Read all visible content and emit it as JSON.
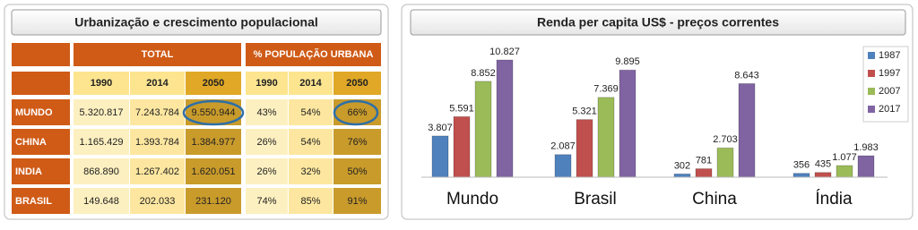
{
  "table": {
    "title": "Urbanização e crescimento populacional",
    "group_headers": [
      "TOTAL",
      "% POPULAÇÃO URBANA"
    ],
    "years": [
      "1990",
      "2014",
      "2050",
      "1990",
      "2014",
      "2050"
    ],
    "rows": [
      [
        "MUNDO",
        "5.320.817",
        "7.243.784",
        "9.550.944",
        "43%",
        "54%",
        "66%"
      ],
      [
        "CHINA",
        "1.165.429",
        "1.393.784",
        "1.384.977",
        "26%",
        "54%",
        "76%"
      ],
      [
        "INDIA",
        "868.890",
        "1.267.402",
        "1.620.051",
        "26%",
        "32%",
        "50%"
      ],
      [
        "BRASIL",
        "149.648",
        "202.033",
        "231.120",
        "74%",
        "85%",
        "91%"
      ]
    ]
  },
  "chart_data": {
    "type": "bar",
    "title": "Renda per capita US$ - preços correntes",
    "categories": [
      "Mundo",
      "Brasil",
      "China",
      "Índia"
    ],
    "series": [
      {
        "name": "1987",
        "color": "#4f81bd",
        "values": [
          3807,
          2087,
          302,
          356
        ],
        "value_labels": [
          "3.807",
          "2.087",
          "302",
          "356"
        ]
      },
      {
        "name": "1997",
        "color": "#c0504d",
        "values": [
          5591,
          5321,
          781,
          435
        ],
        "value_labels": [
          "5.591",
          "5.321",
          "781",
          "435"
        ]
      },
      {
        "name": "2007",
        "color": "#9bbb59",
        "values": [
          8852,
          7369,
          2703,
          1077
        ],
        "value_labels": [
          "8.852",
          "7.369",
          "2.703",
          "1.077"
        ]
      },
      {
        "name": "2017",
        "color": "#8064a2",
        "values": [
          10827,
          9895,
          8643,
          1983
        ],
        "value_labels": [
          "10.827",
          "9.895",
          "8.643",
          "1.983"
        ]
      }
    ],
    "legend": "right"
  }
}
